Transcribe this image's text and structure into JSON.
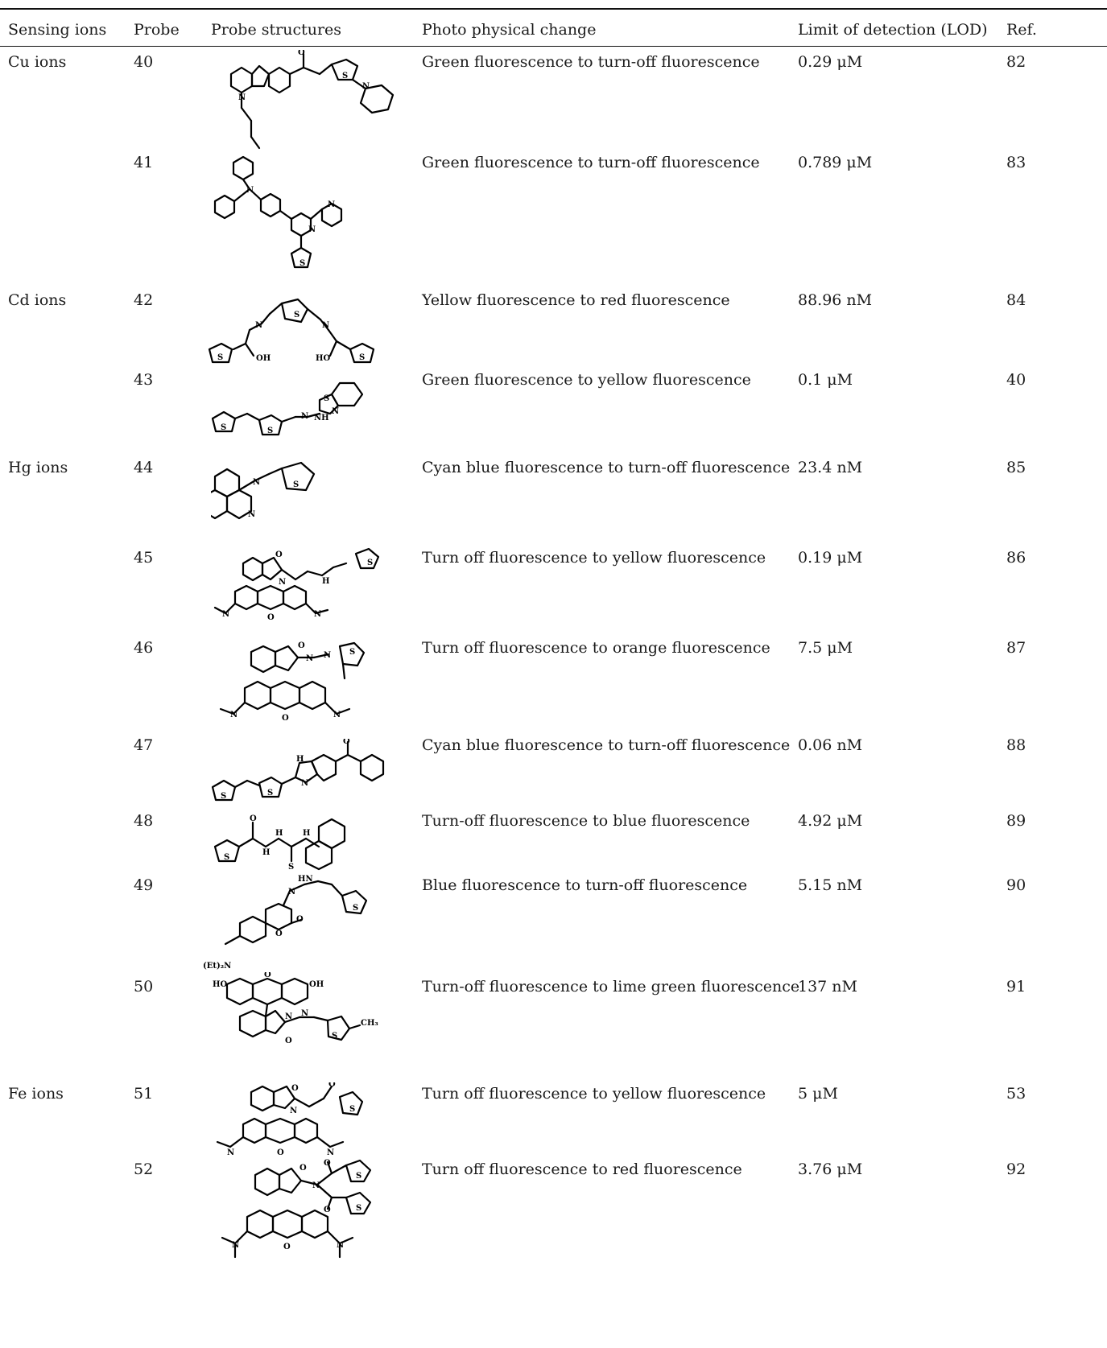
{
  "headers": {
    "ions": "Sensing ions",
    "probe": "Probe",
    "structure": "Probe structures",
    "change": "Photo physical change",
    "lod": "Limit of detection (LOD)",
    "ref": "Ref."
  },
  "rows": [
    {
      "ion": "Cu ions",
      "probe": "40",
      "change": "Green fluorescence to turn-off fluorescence",
      "lod": "0.29 μM",
      "ref": "82"
    },
    {
      "ion": "",
      "probe": "41",
      "change": "Green fluorescence to turn-off fluorescence",
      "lod": "0.789 μM",
      "ref": "83"
    },
    {
      "ion": "Cd ions",
      "probe": "42",
      "change": "Yellow fluorescence to red fluorescence",
      "lod": "88.96 nM",
      "ref": "84"
    },
    {
      "ion": "",
      "probe": "43",
      "change": "Green fluorescence to yellow fluorescence",
      "lod": "0.1 μM",
      "ref": "40"
    },
    {
      "ion": "Hg ions",
      "probe": "44",
      "change": "Cyan blue fluorescence to turn-off fluorescence",
      "lod": "23.4 nM",
      "ref": "85"
    },
    {
      "ion": "",
      "probe": "45",
      "change": "Turn off fluorescence to yellow fluorescence",
      "lod": "0.19 μM",
      "ref": "86"
    },
    {
      "ion": "",
      "probe": "46",
      "change": "Turn off fluorescence to orange fluorescence",
      "lod": "7.5 μM",
      "ref": "87"
    },
    {
      "ion": "",
      "probe": "47",
      "change": "Cyan blue fluorescence to turn-off fluorescence",
      "lod": "0.06 nM",
      "ref": "88"
    },
    {
      "ion": "",
      "probe": "48",
      "change": "Turn-off fluorescence to blue fluorescence",
      "lod": "4.92 μM",
      "ref": "89"
    },
    {
      "ion": "",
      "probe": "49",
      "change": "Blue fluorescence to turn-off fluorescence",
      "lod": "5.15 nM",
      "ref": "90"
    },
    {
      "ion": "",
      "probe": "50",
      "change": "Turn-off fluorescence to lime green fluorescence",
      "lod": "137 nM",
      "ref": "91"
    },
    {
      "ion": "Fe ions",
      "probe": "51",
      "change": "Turn off fluorescence to yellow fluorescence",
      "lod": "5 μM",
      "ref": "53"
    },
    {
      "ion": "",
      "probe": "52",
      "change": "Turn off fluorescence to red fluorescence",
      "lod": "3.76 μM",
      "ref": "92"
    }
  ],
  "structure_labels": {
    "s49_substituent": "(Et)₂N",
    "s50_hydroxyl_left": "HO",
    "s50_hydroxyl_right": "OH",
    "s50_methyl": "CH₃"
  }
}
